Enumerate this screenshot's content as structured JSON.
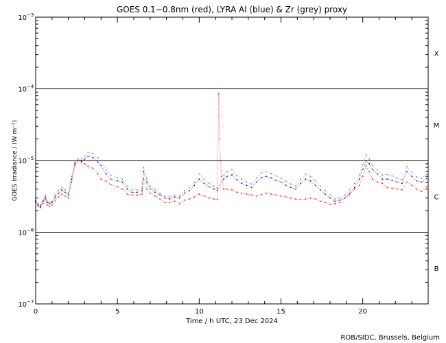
{
  "chart_data": {
    "type": "scatter",
    "title": "GOES 0.1−0.8nm (red), LYRA Al (blue) & Zr (grey) proxy",
    "xlabel": "Time / h UTC, 23 Dec 2024",
    "ylabel": "GOES Irradiance / (W m⁻²)",
    "xlim": [
      0,
      24
    ],
    "ylim": [
      1e-07,
      0.001
    ],
    "yscale": "log",
    "x_ticks": [
      0,
      5,
      10,
      15,
      20
    ],
    "y_ticks": [
      {
        "value": 1e-07,
        "base": "10",
        "exp": "−7"
      },
      {
        "value": 1e-06,
        "base": "10",
        "exp": "−6"
      },
      {
        "value": 1e-05,
        "base": "10",
        "exp": "−5"
      },
      {
        "value": 0.0001,
        "base": "10",
        "exp": "−4"
      },
      {
        "value": 0.001,
        "base": "10",
        "exp": "−3"
      }
    ],
    "flare_levels": [
      1e-06,
      1e-05,
      0.0001
    ],
    "flare_classes": [
      {
        "label": "X",
        "value": 0.000316
      },
      {
        "label": "M",
        "value": 3.16e-05
      },
      {
        "label": "C",
        "value": 3.16e-06
      },
      {
        "label": "B",
        "value": 3.16e-07
      }
    ],
    "series": [
      {
        "name": "GOES 0.1−0.8nm",
        "color": "#ff0000",
        "x": [
          0,
          0.15,
          0.3,
          0.45,
          0.6,
          0.7,
          0.85,
          1.0,
          1.2,
          1.4,
          1.6,
          1.8,
          2.0,
          2.2,
          2.4,
          2.6,
          2.8,
          3.0,
          3.2,
          3.5,
          3.8,
          4.0,
          4.3,
          4.6,
          5.0,
          5.3,
          5.6,
          5.9,
          6.2,
          6.5,
          6.6,
          6.8,
          7.0,
          7.3,
          7.6,
          7.9,
          8.2,
          8.5,
          8.8,
          9.1,
          9.4,
          9.7,
          10.0,
          10.3,
          10.6,
          10.9,
          11.1,
          11.2,
          11.25,
          11.35,
          11.5,
          11.7,
          12.0,
          12.3,
          12.6,
          12.9,
          13.2,
          13.5,
          13.8,
          14.1,
          14.4,
          14.7,
          15.0,
          15.3,
          15.6,
          15.9,
          16.2,
          16.5,
          16.8,
          17.1,
          17.4,
          17.7,
          18.0,
          18.3,
          18.6,
          18.9,
          19.2,
          19.5,
          19.8,
          20.0,
          20.2,
          20.4,
          20.6,
          20.9,
          21.2,
          21.5,
          21.8,
          22.1,
          22.4,
          22.7,
          23.0,
          23.3,
          23.6,
          23.9
        ],
        "y": [
          2.6e-06,
          2.3e-06,
          2.2e-06,
          2.5e-06,
          2.9e-06,
          2.4e-06,
          2.3e-06,
          2.4e-06,
          2.8e-06,
          3.1e-06,
          3.4e-06,
          3.2e-06,
          3e-06,
          5e-06,
          8.5e-06,
          1e-05,
          9.5e-06,
          9e-06,
          8.3e-06,
          7.8e-06,
          6.5e-06,
          5.5e-06,
          5.2e-06,
          4.6e-06,
          4.3e-06,
          4e-06,
          3.4e-06,
          3.3e-06,
          3.3e-06,
          3.4e-06,
          5.5e-06,
          4e-06,
          3.5e-06,
          3.2e-06,
          2.9e-06,
          2.6e-06,
          2.6e-06,
          2.7e-06,
          2.5e-06,
          2.8e-06,
          2.9e-06,
          3.1e-06,
          3.4e-06,
          3.2e-06,
          3e-06,
          2.9e-06,
          2.85e-06,
          8.5e-05,
          2e-05,
          6e-06,
          4e-06,
          4e-06,
          3.9e-06,
          3.6e-06,
          3.5e-06,
          3.4e-06,
          3.3e-06,
          3.2e-06,
          3.35e-06,
          3.5e-06,
          3.4e-06,
          3.3e-06,
          3.2e-06,
          3.1e-06,
          3e-06,
          2.9e-06,
          2.85e-06,
          2.9e-06,
          3e-06,
          2.9e-06,
          2.7e-06,
          2.6e-06,
          2.45e-06,
          2.5e-06,
          2.6e-06,
          3e-06,
          3.3e-06,
          4e-06,
          4.5e-06,
          6e-06,
          8.5e-06,
          7e-06,
          5.5e-06,
          5e-06,
          4.8e-06,
          4.2e-06,
          4.1e-06,
          4e-06,
          3.9e-06,
          5e-06,
          4.5e-06,
          4e-06,
          3.7e-06,
          4.3e-06
        ]
      },
      {
        "name": "LYRA Al",
        "color": "#0000cc",
        "x": [
          0,
          0.15,
          0.3,
          0.45,
          0.6,
          0.7,
          0.85,
          1.0,
          1.2,
          1.4,
          1.6,
          1.8,
          2.0,
          2.2,
          2.4,
          2.6,
          2.8,
          3.0,
          3.2,
          3.5,
          3.8,
          4.0,
          4.3,
          4.6,
          5.0,
          5.3,
          5.6,
          5.9,
          6.2,
          6.5,
          6.6,
          6.8,
          7.0,
          7.3,
          7.6,
          7.9,
          8.2,
          8.5,
          8.8,
          9.1,
          9.4,
          9.7,
          10.0,
          10.3,
          10.6,
          10.9,
          11.1,
          11.5,
          11.7,
          12.0,
          12.3,
          12.6,
          12.9,
          13.2,
          13.5,
          13.8,
          14.1,
          14.4,
          14.7,
          15.0,
          15.3,
          15.6,
          15.9,
          16.2,
          16.5,
          16.8,
          17.1,
          17.4,
          17.7,
          18.0,
          18.3,
          18.6,
          18.9,
          19.2,
          19.5,
          19.8,
          20.0,
          20.2,
          20.4,
          20.6,
          20.9,
          21.2,
          21.5,
          21.8,
          22.1,
          22.4,
          22.7,
          23.0,
          23.3,
          23.6,
          23.9
        ],
        "y": [
          2.7e-06,
          2.4e-06,
          2.3e-06,
          2.7e-06,
          3.1e-06,
          2.6e-06,
          2.5e-06,
          2.6e-06,
          3.1e-06,
          3.5e-06,
          3.9e-06,
          3.6e-06,
          3.3e-06,
          5.5e-06,
          9e-06,
          1e-05,
          9.8e-06,
          1.05e-05,
          1.15e-05,
          1.1e-05,
          9.5e-06,
          8.5e-06,
          6.5e-06,
          5.5e-06,
          5.2e-06,
          5e-06,
          4e-06,
          3.6e-06,
          3.6e-06,
          3.8e-06,
          7e-06,
          5e-06,
          4e-06,
          3.6e-06,
          3.3e-06,
          3e-06,
          2.9e-06,
          3.1e-06,
          3e-06,
          3.5e-06,
          3.8e-06,
          4.5e-06,
          5.5e-06,
          4.8e-06,
          4.3e-06,
          4e-06,
          3.8e-06,
          5.5e-06,
          6e-06,
          6.3e-06,
          5.4e-06,
          4.8e-06,
          4.5e-06,
          4.2e-06,
          5e-06,
          5.8e-06,
          6e-06,
          5.7e-06,
          5.3e-06,
          5e-06,
          4.5e-06,
          4.2e-06,
          4e-06,
          4.8e-06,
          5.5e-06,
          5.2e-06,
          4.5e-06,
          3.9e-06,
          3.4e-06,
          3e-06,
          2.7e-06,
          2.8e-06,
          3e-06,
          3.5e-06,
          4.2e-06,
          5.5e-06,
          7.5e-06,
          1e-05,
          9e-06,
          7.5e-06,
          6.5e-06,
          5.5e-06,
          5.5e-06,
          5.3e-06,
          5e-06,
          4.8e-06,
          7e-06,
          6e-06,
          5.2e-06,
          5e-06,
          5.6e-06
        ]
      },
      {
        "name": "LYRA Zr",
        "color": "#808080",
        "x": [
          0,
          0.15,
          0.3,
          0.45,
          0.6,
          0.7,
          0.85,
          1.0,
          1.2,
          1.4,
          1.6,
          1.8,
          2.0,
          2.2,
          2.4,
          2.6,
          2.8,
          3.0,
          3.2,
          3.5,
          3.8,
          4.0,
          4.3,
          4.6,
          5.0,
          5.3,
          5.6,
          5.9,
          6.2,
          6.5,
          6.6,
          6.8,
          7.0,
          7.3,
          7.6,
          7.9,
          8.2,
          8.5,
          8.8,
          9.1,
          9.4,
          9.7,
          10.0,
          10.3,
          10.6,
          10.9,
          11.1,
          11.5,
          11.7,
          12.0,
          12.3,
          12.6,
          12.9,
          13.2,
          13.5,
          13.8,
          14.1,
          14.4,
          14.7,
          15.0,
          15.3,
          15.6,
          15.9,
          16.2,
          16.5,
          16.8,
          17.1,
          17.4,
          17.7,
          18.0,
          18.3,
          18.6,
          18.9,
          19.2,
          19.5,
          19.8,
          20.0,
          20.2,
          20.4,
          20.6,
          20.9,
          21.2,
          21.5,
          21.8,
          22.1,
          22.4,
          22.7,
          23.0,
          23.3,
          23.6,
          23.9
        ],
        "y": [
          2.8e-06,
          2.5e-06,
          2.4e-06,
          2.8e-06,
          3.3e-06,
          2.7e-06,
          2.6e-06,
          2.7e-06,
          3.3e-06,
          3.8e-06,
          4.2e-06,
          3.9e-06,
          3.5e-06,
          6e-06,
          9.5e-06,
          1.05e-05,
          1.05e-05,
          1.15e-05,
          1.3e-05,
          1.25e-05,
          1.1e-05,
          1e-05,
          7.5e-06,
          6.2e-06,
          5.8e-06,
          5.5e-06,
          4.4e-06,
          3.9e-06,
          3.9e-06,
          4.1e-06,
          8e-06,
          5.6e-06,
          4.4e-06,
          3.9e-06,
          3.5e-06,
          3.2e-06,
          3.1e-06,
          3.3e-06,
          3.2e-06,
          3.8e-06,
          4.2e-06,
          5e-06,
          6.5e-06,
          5.5e-06,
          4.8e-06,
          4.4e-06,
          4.1e-06,
          6.2e-06,
          7e-06,
          7.5e-06,
          6.2e-06,
          5.5e-06,
          5e-06,
          4.7e-06,
          5.7e-06,
          6.7e-06,
          7e-06,
          6.6e-06,
          6.1e-06,
          5.7e-06,
          5.1e-06,
          4.7e-06,
          4.4e-06,
          5.4e-06,
          6.4e-06,
          6e-06,
          5.2e-06,
          4.4e-06,
          3.8e-06,
          3.3e-06,
          2.9e-06,
          3e-06,
          3.3e-06,
          3.9e-06,
          4.8e-06,
          6.3e-06,
          8.8e-06,
          1.2e-05,
          1.05e-05,
          8.6e-06,
          7.4e-06,
          6.3e-06,
          6.4e-06,
          6.1e-06,
          5.7e-06,
          5.4e-06,
          8.2e-06,
          6.9e-06,
          5.9e-06,
          5.6e-06,
          6.4e-06
        ]
      }
    ],
    "grid": false,
    "legend": "none"
  },
  "credit": "ROB/SIDC, Brussels, Belgium"
}
